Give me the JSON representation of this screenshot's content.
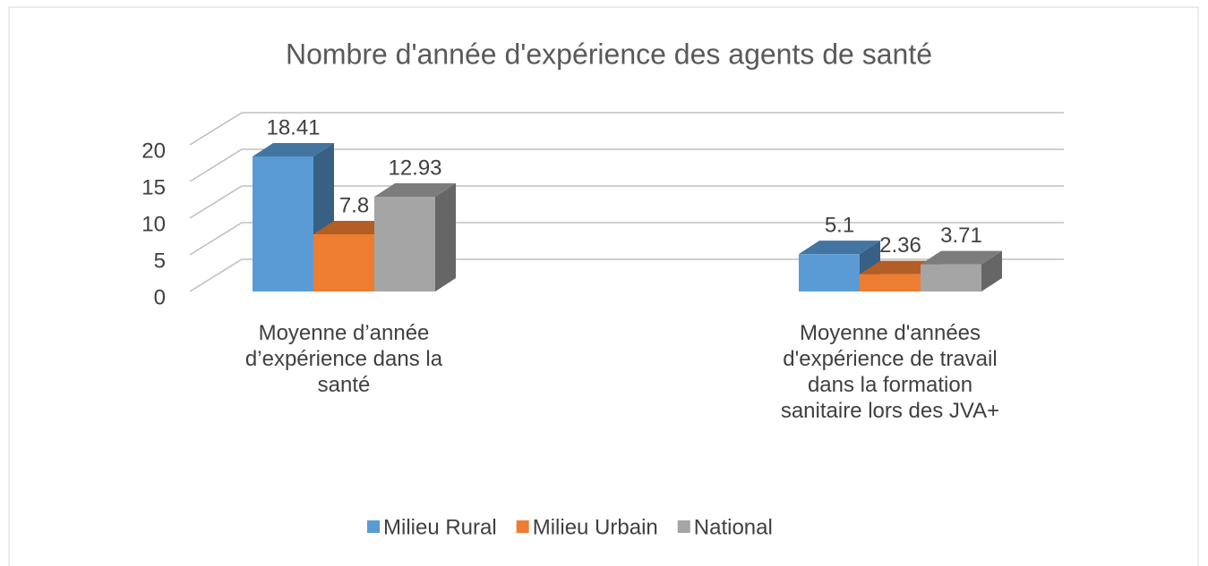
{
  "chart_data": {
    "type": "bar3d",
    "title": "Nombre d'année d'expérience des agents de santé",
    "categories": [
      "Moyenne d’année d’expérience dans la santé",
      "Moyenne d'années d'expérience de travail dans la formation sanitaire lors des JVA+"
    ],
    "series": [
      {
        "name": "Milieu Rural",
        "color": "#5b9bd5",
        "values": [
          18.41,
          5.1
        ]
      },
      {
        "name": "Milieu Urbain",
        "color": "#ed7d31",
        "values": [
          7.8,
          2.36
        ]
      },
      {
        "name": "National",
        "color": "#a5a5a5",
        "values": [
          12.93,
          3.71
        ]
      }
    ],
    "ylim": [
      0,
      20
    ],
    "yticks": [
      0,
      5,
      10,
      15,
      20
    ],
    "grid": true,
    "legend": "bottom"
  }
}
